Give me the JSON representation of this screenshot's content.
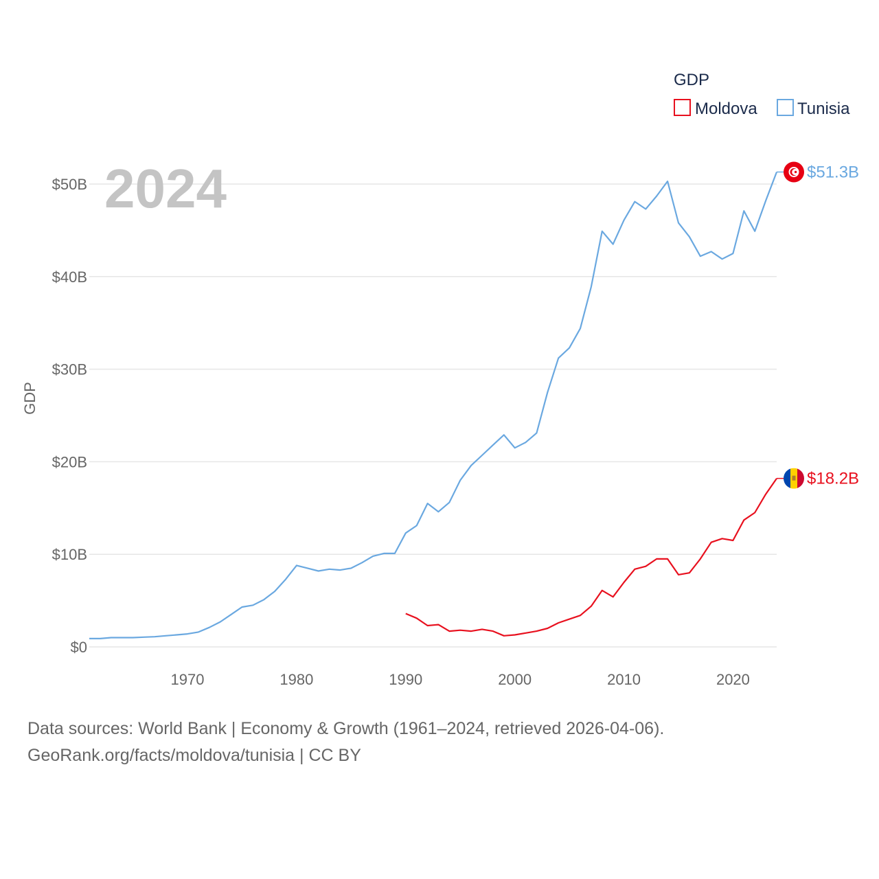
{
  "chart_data": {
    "type": "line",
    "title": "",
    "year_label": "2024",
    "xlabel": "",
    "ylabel": "GDP",
    "xlim": [
      1961,
      2024
    ],
    "ylim": [
      0,
      50
    ],
    "x_ticks": [
      1970,
      1980,
      1990,
      2000,
      2010,
      2020
    ],
    "y_ticks": [
      {
        "value": 0,
        "label": "$0"
      },
      {
        "value": 10,
        "label": "$10B"
      },
      {
        "value": 20,
        "label": "$20B"
      },
      {
        "value": 30,
        "label": "$30B"
      },
      {
        "value": 40,
        "label": "$40B"
      },
      {
        "value": 50,
        "label": "$50B"
      }
    ],
    "legend": {
      "title": "GDP",
      "position": "top-right"
    },
    "series": [
      {
        "name": "Moldova",
        "color": "#e8101e",
        "end_label": "$18.2B",
        "flag": "moldova-flag",
        "x": [
          1990,
          1991,
          1992,
          1993,
          1994,
          1995,
          1996,
          1997,
          1998,
          1999,
          2000,
          2001,
          2002,
          2003,
          2004,
          2005,
          2006,
          2007,
          2008,
          2009,
          2010,
          2011,
          2012,
          2013,
          2014,
          2015,
          2016,
          2017,
          2018,
          2019,
          2020,
          2021,
          2022,
          2023,
          2024
        ],
        "values": [
          3.6,
          3.1,
          2.3,
          2.4,
          1.7,
          1.8,
          1.7,
          1.9,
          1.7,
          1.2,
          1.3,
          1.5,
          1.7,
          2.0,
          2.6,
          3.0,
          3.4,
          4.4,
          6.1,
          5.4,
          6.97,
          8.4,
          8.7,
          9.5,
          9.5,
          7.8,
          8.0,
          9.5,
          11.3,
          11.7,
          11.5,
          13.7,
          14.5,
          16.5,
          18.2
        ]
      },
      {
        "name": "Tunisia",
        "color": "#6aa8e0",
        "end_label": "$51.3B",
        "flag": "tunisia-flag",
        "x": [
          1961,
          1962,
          1963,
          1964,
          1965,
          1966,
          1967,
          1968,
          1969,
          1970,
          1971,
          1972,
          1973,
          1974,
          1975,
          1976,
          1977,
          1978,
          1979,
          1980,
          1981,
          1982,
          1983,
          1984,
          1985,
          1986,
          1987,
          1988,
          1989,
          1990,
          1991,
          1992,
          1993,
          1994,
          1995,
          1996,
          1997,
          1998,
          1999,
          2000,
          2001,
          2002,
          2003,
          2004,
          2005,
          2006,
          2007,
          2008,
          2009,
          2010,
          2011,
          2012,
          2013,
          2014,
          2015,
          2016,
          2017,
          2018,
          2019,
          2020,
          2021,
          2022,
          2023,
          2024
        ],
        "values": [
          0.9,
          0.9,
          1.0,
          1.0,
          1.0,
          1.05,
          1.1,
          1.2,
          1.3,
          1.4,
          1.6,
          2.1,
          2.7,
          3.5,
          4.3,
          4.5,
          5.1,
          6.0,
          7.3,
          8.8,
          8.5,
          8.2,
          8.4,
          8.3,
          8.5,
          9.1,
          9.8,
          10.1,
          10.1,
          12.3,
          13.1,
          15.5,
          14.6,
          15.6,
          18.0,
          19.6,
          20.7,
          21.8,
          22.9,
          21.5,
          22.1,
          23.1,
          27.5,
          31.2,
          32.3,
          34.4,
          38.9,
          44.9,
          43.5,
          46.1,
          48.1,
          47.3,
          48.7,
          50.3,
          45.8,
          44.3,
          42.2,
          42.7,
          41.9,
          42.5,
          47.1,
          44.9,
          48.2,
          51.3
        ]
      }
    ]
  },
  "footer": {
    "line1": "Data sources: World Bank | Economy & Growth (1961–2024, retrieved 2026-04-06).",
    "line2": "GeoRank.org/facts/moldova/tunisia | CC BY"
  }
}
